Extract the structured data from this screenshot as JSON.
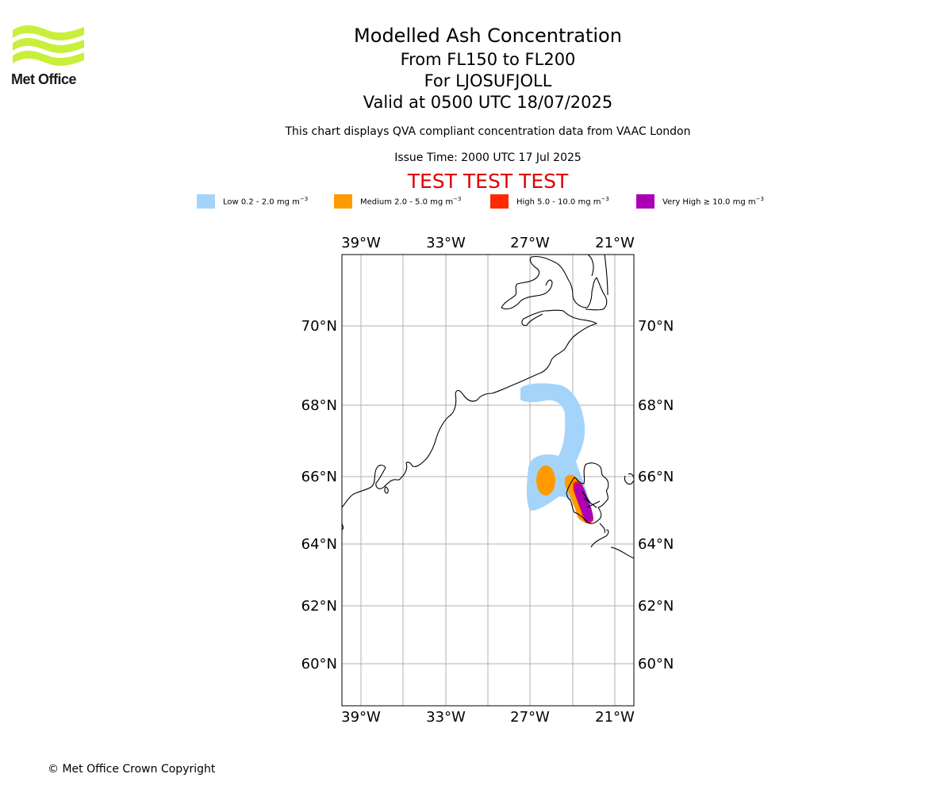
{
  "header": {
    "logo_text": "Met Office",
    "title": "Modelled Ash Concentration",
    "flight_levels": "From FL150 to FL200",
    "volcano": "For LJOSUFJOLL",
    "valid_time": "Valid at 0500 UTC 18/07/2025",
    "description": "This chart displays QVA compliant concentration data from VAAC London",
    "issue_time": "Issue Time: 2000 UTC 17 Jul 2025",
    "test_banner": "TEST TEST TEST"
  },
  "legend": [
    {
      "label": "Low 0.2 - 2.0 mg m",
      "exp": "−3",
      "color": "#a4d4fa"
    },
    {
      "label": "Medium 2.0 - 5.0 mg m",
      "exp": "−3",
      "color": "#ff9a00"
    },
    {
      "label": "High 5.0 - 10.0 mg m",
      "exp": "−3",
      "color": "#ff2a00"
    },
    {
      "label": "Very High  ≥  10.0 mg m",
      "exp": "−3",
      "color": "#ab00b5"
    }
  ],
  "map": {
    "lon_ticks": [
      "39°W",
      "33°W",
      "27°W",
      "21°W"
    ],
    "lat_ticks": [
      "70°N",
      "68°N",
      "66°N",
      "64°N",
      "62°N",
      "60°N"
    ],
    "grid_color": "#b0b0b0",
    "coast_color": "#000000"
  },
  "footer": {
    "copyright": "© Met Office Crown Copyright"
  }
}
